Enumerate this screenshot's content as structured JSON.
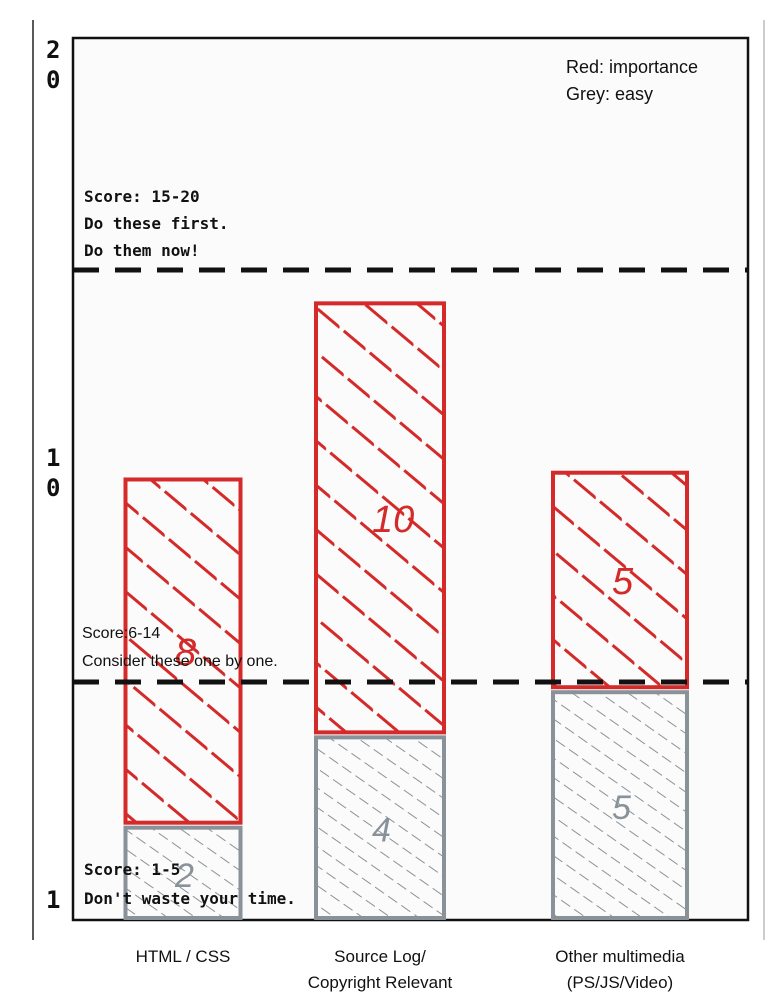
{
  "chart_data": {
    "type": "bar",
    "stacked": true,
    "categories": [
      [
        "HTML / CSS"
      ],
      [
        "Source Log/",
        "Copyright Relevant"
      ],
      [
        "Other multimedia",
        "(PS/JS/Video)"
      ]
    ],
    "series": [
      {
        "name": "easy",
        "color": "#8a9299",
        "values": [
          2,
          4,
          5
        ]
      },
      {
        "name": "importance",
        "color": "#d42a2a",
        "values": [
          8,
          10,
          5
        ]
      }
    ],
    "ylim": [
      1,
      20
    ],
    "y_ticks": [
      {
        "value": 20,
        "label": "20"
      },
      {
        "value": 10,
        "label": "10"
      },
      {
        "value": 1,
        "label": "1"
      }
    ],
    "thresholds": [
      15,
      6
    ],
    "legend": [
      "Red: importance",
      "Grey: easy"
    ],
    "legend_position": "top-right",
    "zones": {
      "top": [
        "Score: 15-20",
        "Do these first.",
        "Do them now!"
      ],
      "middle": [
        "Score:6-14",
        "Consider these one by one."
      ],
      "bottom": [
        "Score: 1-5",
        "Don't waste your time."
      ]
    }
  }
}
